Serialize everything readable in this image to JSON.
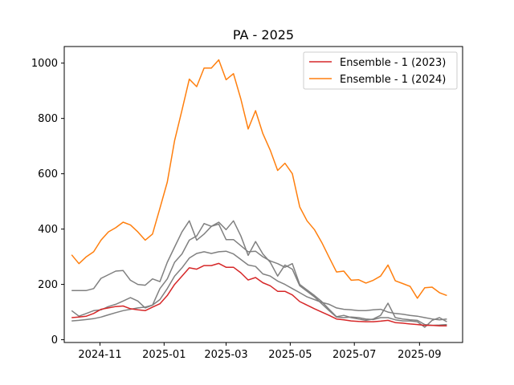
{
  "chart_data": {
    "type": "line",
    "title": "PA - 2025",
    "xlabel": "",
    "ylabel": "",
    "xlim": [
      "2024-09-28",
      "2025-10-12"
    ],
    "ylim": [
      -10,
      1060
    ],
    "x_ticks": [
      "2024-11",
      "2025-01",
      "2025-03",
      "2025-05",
      "2025-07",
      "2025-09"
    ],
    "x_tick_dates": [
      "2024-11-01",
      "2025-01-01",
      "2025-03-01",
      "2025-05-01",
      "2025-07-01",
      "2025-09-01"
    ],
    "y_ticks": [
      0,
      200,
      400,
      600,
      800,
      1000
    ],
    "grid": false,
    "legend_position": "top-right",
    "x": [
      "2024-10-05",
      "2024-10-12",
      "2024-10-19",
      "2024-10-26",
      "2024-11-02",
      "2024-11-09",
      "2024-11-16",
      "2024-11-23",
      "2024-11-30",
      "2024-12-07",
      "2024-12-14",
      "2024-12-21",
      "2024-12-28",
      "2025-01-04",
      "2025-01-11",
      "2025-01-18",
      "2025-01-25",
      "2025-02-01",
      "2025-02-08",
      "2025-02-15",
      "2025-02-22",
      "2025-03-01",
      "2025-03-08",
      "2025-03-15",
      "2025-03-22",
      "2025-03-29",
      "2025-04-05",
      "2025-04-12",
      "2025-04-19",
      "2025-04-26",
      "2025-05-03",
      "2025-05-10",
      "2025-05-17",
      "2025-05-24",
      "2025-05-31",
      "2025-06-07",
      "2025-06-14",
      "2025-06-21",
      "2025-06-28",
      "2025-07-05",
      "2025-07-12",
      "2025-07-19",
      "2025-07-26",
      "2025-08-02",
      "2025-08-09",
      "2025-08-16",
      "2025-08-23",
      "2025-08-30",
      "2025-09-06",
      "2025-09-13",
      "2025-09-20",
      "2025-09-27"
    ],
    "series": [
      {
        "name": "Ensemble - 1 (2023)",
        "color": "#d62728",
        "in_legend": true,
        "values": [
          80,
          82,
          85,
          95,
          110,
          115,
          120,
          122,
          112,
          108,
          105,
          118,
          130,
          160,
          200,
          230,
          260,
          255,
          268,
          268,
          276,
          262,
          262,
          242,
          216,
          225,
          206,
          195,
          175,
          175,
          162,
          138,
          125,
          112,
          100,
          88,
          75,
          72,
          68,
          66,
          65,
          65,
          67,
          70,
          62,
          60,
          57,
          55,
          52,
          52,
          50,
          50
        ]
      },
      {
        "name": "Ensemble - 1 (2024)",
        "color": "#ff7f0e",
        "in_legend": true,
        "values": [
          307,
          275,
          300,
          318,
          360,
          390,
          405,
          425,
          415,
          390,
          360,
          382,
          475,
          570,
          720,
          830,
          942,
          915,
          982,
          982,
          1012,
          940,
          962,
          870,
          762,
          828,
          745,
          685,
          612,
          638,
          600,
          480,
          430,
          398,
          352,
          298,
          245,
          248,
          215,
          217,
          205,
          215,
          230,
          270,
          213,
          203,
          193,
          150,
          188,
          190,
          170,
          160
        ]
      },
      {
        "name": "",
        "color": "#808080",
        "in_legend": false,
        "values": [
          178,
          178,
          178,
          185,
          222,
          235,
          248,
          250,
          215,
          200,
          197,
          220,
          210,
          280,
          335,
          390,
          430,
          360,
          382,
          410,
          418,
          362,
          362,
          340,
          318,
          320,
          300,
          285,
          275,
          262,
          275,
          200,
          180,
          160,
          138,
          110,
          83,
          88,
          80,
          75,
          70,
          75,
          88,
          132,
          80,
          75,
          72,
          70,
          55,
          52,
          53,
          55
        ]
      },
      {
        "name": "",
        "color": "#808080",
        "in_legend": false,
        "values": [
          105,
          85,
          95,
          105,
          108,
          120,
          128,
          140,
          152,
          140,
          115,
          125,
          185,
          220,
          280,
          310,
          360,
          375,
          420,
          410,
          425,
          398,
          430,
          375,
          305,
          355,
          310,
          280,
          230,
          270,
          255,
          195,
          175,
          155,
          130,
          105,
          82,
          80,
          82,
          80,
          75,
          73,
          80,
          80,
          72,
          68,
          68,
          65,
          45,
          70,
          80,
          65
        ]
      },
      {
        "name": "",
        "color": "#808080",
        "in_legend": false,
        "values": [
          68,
          70,
          73,
          76,
          82,
          90,
          98,
          105,
          110,
          115,
          118,
          125,
          145,
          185,
          230,
          260,
          295,
          312,
          318,
          312,
          318,
          320,
          310,
          290,
          270,
          265,
          238,
          230,
          212,
          200,
          185,
          170,
          155,
          145,
          135,
          128,
          115,
          110,
          108,
          105,
          105,
          108,
          110,
          100,
          95,
          92,
          88,
          85,
          80,
          75,
          72,
          75
        ]
      }
    ]
  }
}
